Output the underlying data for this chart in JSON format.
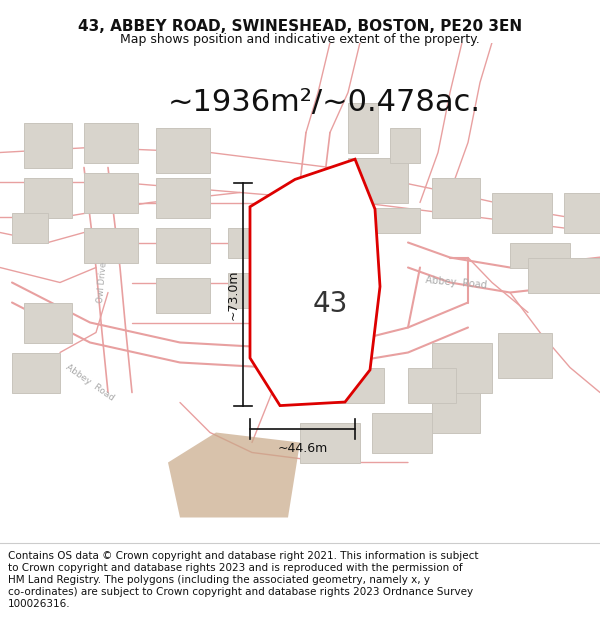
{
  "title": "43, ABBEY ROAD, SWINESHEAD, BOSTON, PE20 3EN",
  "subtitle": "Map shows position and indicative extent of the property.",
  "area_text": "~1936m²/~0.478ac.",
  "label_43": "43",
  "dim_vertical": "~73.0m",
  "dim_horizontal": "~44.6m",
  "footer_lines": [
    "Contains OS data © Crown copyright and database right 2021. This information is subject",
    "to Crown copyright and database rights 2023 and is reproduced with the permission of",
    "HM Land Registry. The polygons (including the associated geometry, namely x, y",
    "co-ordinates) are subject to Crown copyright and database rights 2023 Ordnance Survey",
    "100026316."
  ],
  "map_bg": "#ffffff",
  "property_edge": "#dd0000",
  "road_line_color": "#e8a0a0",
  "road_fill_color": "#f5e8e8",
  "building_fill": "#d8d4cc",
  "building_edge": "#c8c4bc",
  "dim_line_color": "#111111",
  "text_color": "#111111",
  "road_label_color": "#aaaaaa",
  "title_fontsize": 11,
  "subtitle_fontsize": 9,
  "area_fontsize": 22,
  "label_fontsize": 20,
  "dim_fontsize": 9,
  "footer_fontsize": 7.5
}
